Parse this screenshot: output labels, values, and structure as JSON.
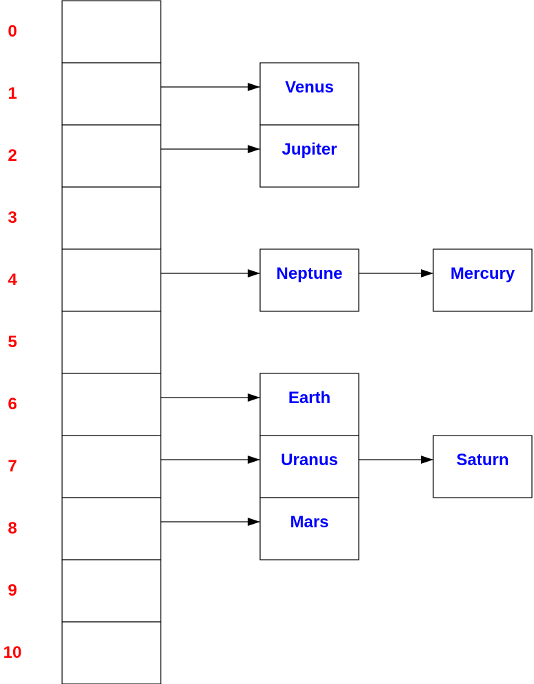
{
  "colors": {
    "index_label": "#ff0000",
    "node_label": "#0000ff",
    "stroke": "#000000",
    "background": "#ffffff"
  },
  "buckets": [
    "0",
    "1",
    "2",
    "3",
    "4",
    "5",
    "6",
    "7",
    "8",
    "9",
    "10"
  ],
  "chains": [
    {
      "bucket": 1,
      "nodes": [
        "Venus"
      ]
    },
    {
      "bucket": 2,
      "nodes": [
        "Jupiter"
      ]
    },
    {
      "bucket": 4,
      "nodes": [
        "Neptune",
        "Mercury"
      ]
    },
    {
      "bucket": 6,
      "nodes": [
        "Earth"
      ]
    },
    {
      "bucket": 7,
      "nodes": [
        "Uranus",
        "Saturn"
      ]
    },
    {
      "bucket": 8,
      "nodes": [
        "Mars"
      ]
    }
  ]
}
